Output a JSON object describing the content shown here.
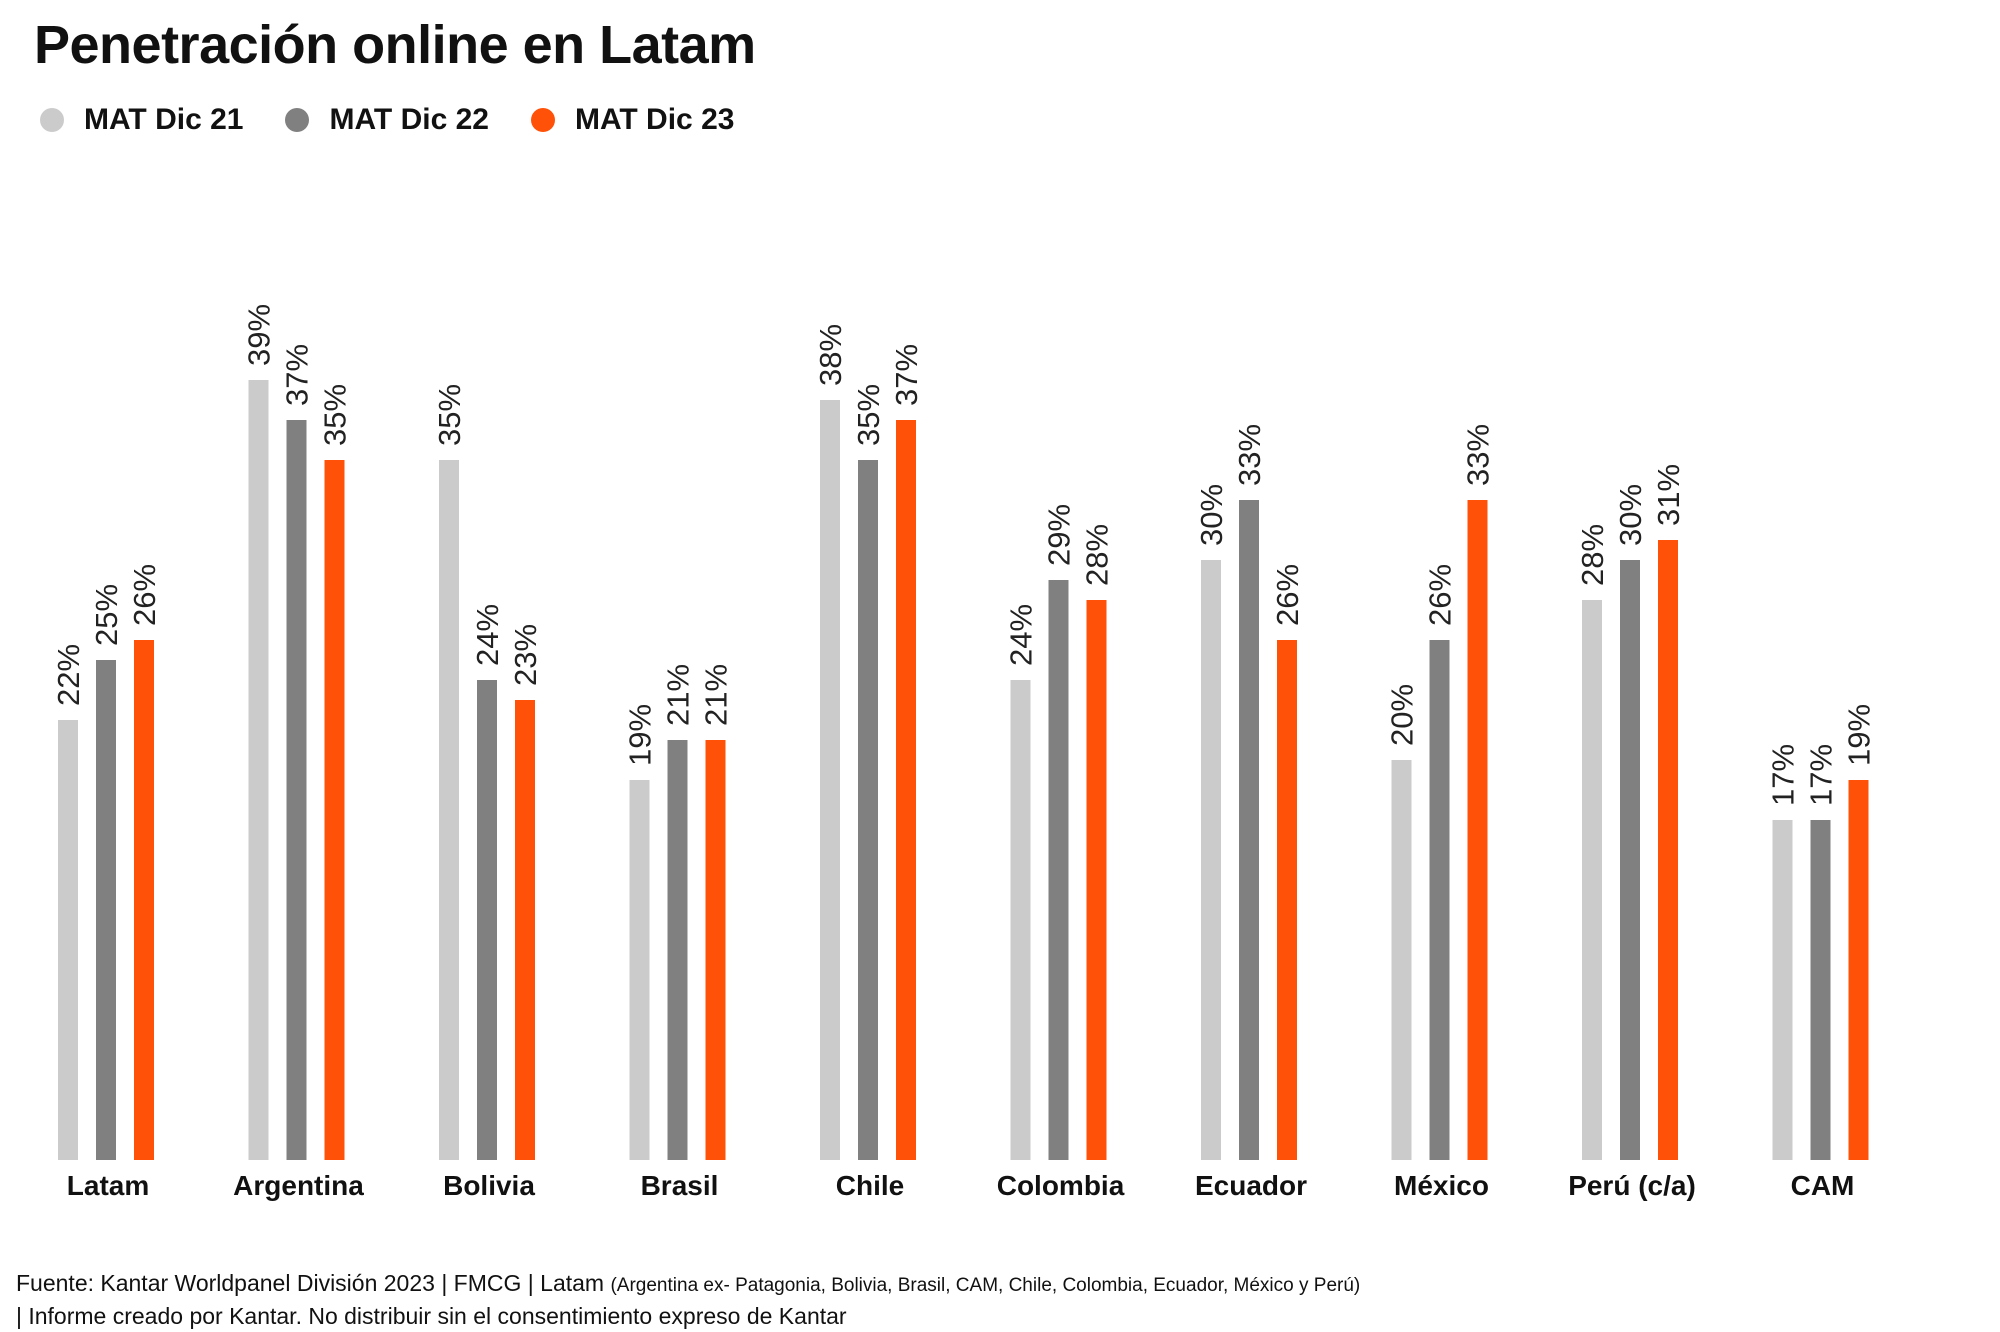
{
  "title": "Penetración online en Latam",
  "colors": {
    "series1": "#cbcbcb",
    "series2": "#808080",
    "series3": "#ff5208"
  },
  "legend": [
    {
      "label": "MAT Dic 21",
      "color": "#cbcbcb"
    },
    {
      "label": "MAT Dic 22",
      "color": "#808080"
    },
    {
      "label": "MAT Dic 23",
      "color": "#ff5208"
    }
  ],
  "chart_data": {
    "type": "bar",
    "title": "Penetración online en Latam",
    "xlabel": "",
    "ylabel": "",
    "ylim": [
      0,
      40
    ],
    "grid": false,
    "legend_position": "top-left",
    "categories": [
      "Latam",
      "Argentina",
      "Bolivia",
      "Brasil",
      "Chile",
      "Colombia",
      "Ecuador",
      "México",
      "Perú (c/a)",
      "CAM"
    ],
    "series": [
      {
        "name": "MAT Dic 21",
        "color": "#cbcbcb",
        "values": [
          22,
          39,
          35,
          19,
          38,
          24,
          30,
          20,
          28,
          17
        ]
      },
      {
        "name": "MAT Dic 22",
        "color": "#808080",
        "values": [
          25,
          37,
          24,
          21,
          35,
          29,
          33,
          26,
          30,
          17
        ]
      },
      {
        "name": "MAT Dic 23",
        "color": "#ff5208",
        "values": [
          26,
          35,
          23,
          21,
          37,
          28,
          26,
          33,
          31,
          19
        ]
      }
    ],
    "value_suffix": "%"
  },
  "footer": {
    "line1_main": "Fuente: Kantar Worldpanel División 2023 | FMCG | Latam",
    "line1_small": "(Argentina ex- Patagonia, Bolivia, Brasil, CAM, Chile, Colombia, Ecuador, México y Perú)",
    "line2": "| Informe creado por Kantar. No distribuir sin el consentimiento expreso de Kantar"
  }
}
